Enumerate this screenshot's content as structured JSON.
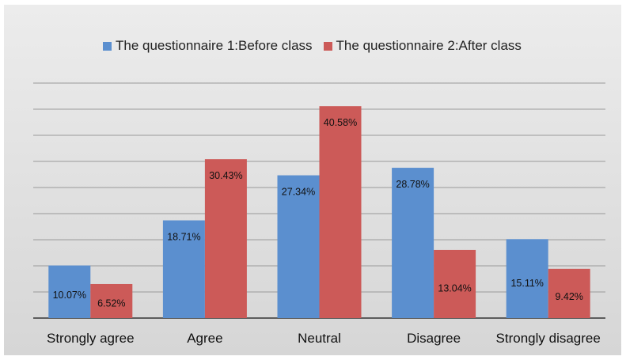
{
  "chart_data": {
    "type": "bar",
    "categories": [
      "Strongly agree",
      "Agree",
      "Neutral",
      "Disagree",
      "Strongly disagree"
    ],
    "series": [
      {
        "name": "The questionnaire 1:Before class",
        "color": "#5b8fcf",
        "values": [
          10.07,
          18.71,
          27.34,
          28.78,
          15.11
        ],
        "labels": [
          "10.07%",
          "18.71%",
          "27.34%",
          "28.78%",
          "15.11%"
        ]
      },
      {
        "name": "The questionnaire 2:After class",
        "color": "#cc5a58",
        "values": [
          6.52,
          30.43,
          40.58,
          13.04,
          9.42
        ],
        "labels": [
          "6.52%",
          "30.43%",
          "40.58%",
          "13.04%",
          "9.42%"
        ]
      }
    ],
    "ylim": [
      0,
      45
    ],
    "grid": true,
    "legend_position": "top"
  }
}
